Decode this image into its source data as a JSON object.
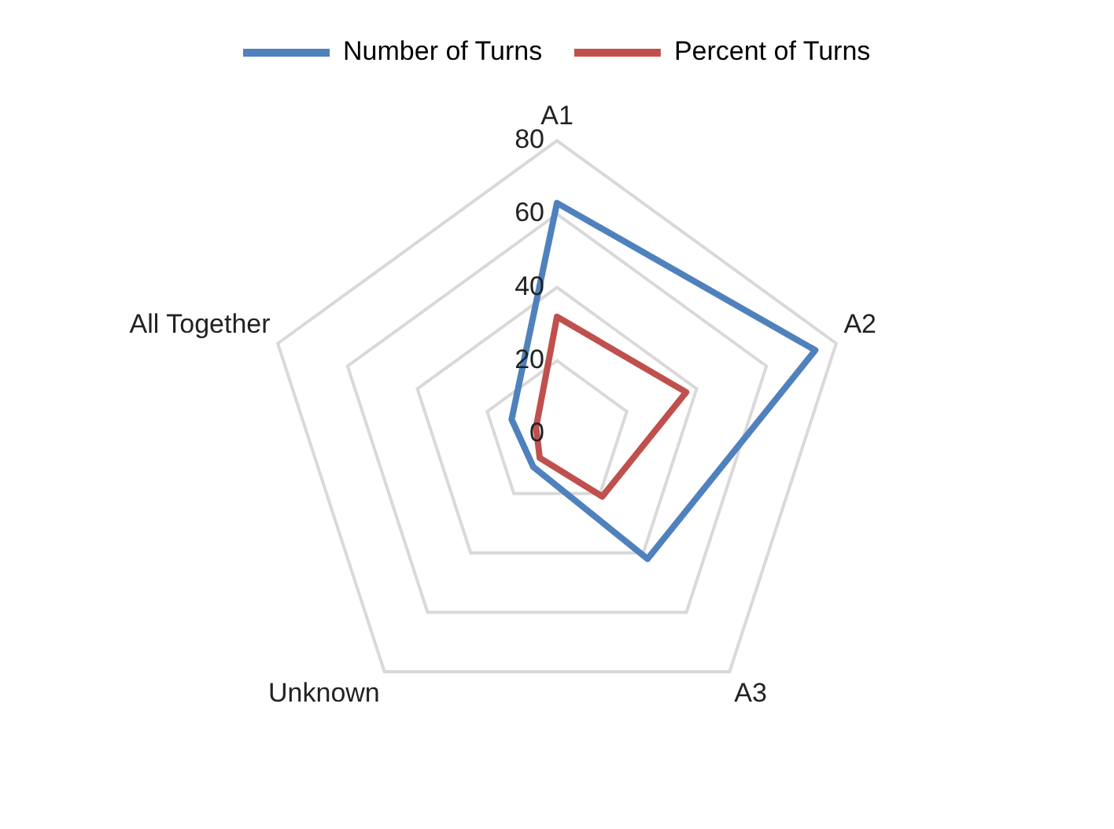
{
  "chart_data": {
    "type": "radar",
    "categories": [
      "A1",
      "A2",
      "A3",
      "Unknown",
      "All Together"
    ],
    "series": [
      {
        "name": "Number of Turns",
        "color": "#4f81bd",
        "values": [
          63,
          74,
          42,
          11,
          13
        ]
      },
      {
        "name": "Percent of Turns",
        "color": "#c0504d",
        "values": [
          32,
          37,
          21,
          8,
          6
        ]
      }
    ],
    "ylim": [
      0,
      80
    ],
    "yticks": [
      0,
      20,
      40,
      60,
      80
    ],
    "grid": true,
    "legend": "top",
    "marker": "none"
  }
}
